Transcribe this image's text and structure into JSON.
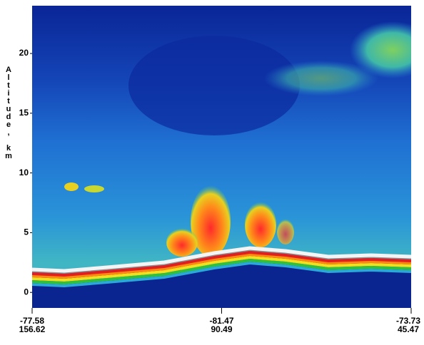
{
  "chart_data": {
    "type": "curtain",
    "ylabel": "Altitude, km",
    "ylim": [
      -1.3,
      24
    ],
    "yticks": [
      0,
      5,
      10,
      15,
      20
    ],
    "xtick_labels": [
      [
        "-77.58",
        "156.62"
      ],
      [
        "-81.47",
        "90.49"
      ],
      [
        "-73.73",
        "45.47"
      ]
    ]
  }
}
